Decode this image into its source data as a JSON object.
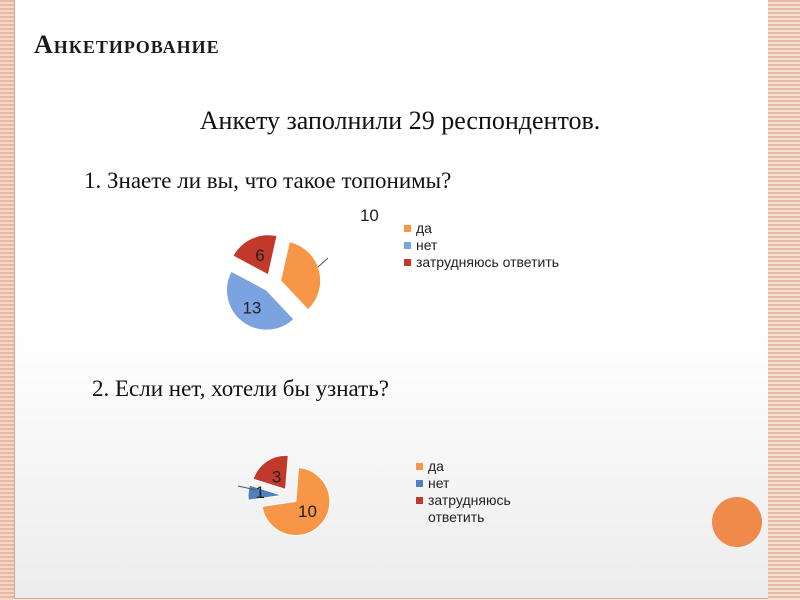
{
  "slide": {
    "title": "Анкетирование",
    "intro": "Анкету заполнили 29 респондентов."
  },
  "questions": [
    {
      "text": "1. Знаете ли вы, что такое топонимы?"
    },
    {
      "text": "2. Если нет, хотели бы узнать?"
    }
  ],
  "colors": {
    "accent_circle": "#f08a4b",
    "border": "#e7b8a3"
  },
  "chart_data": [
    {
      "type": "pie",
      "categories": [
        "да",
        "нет",
        "затрудняюсь ответить"
      ],
      "values": [
        10,
        13,
        6
      ],
      "colors": [
        "#f79646",
        "#7ba3e0",
        "#c0392b"
      ],
      "data_labels": [
        "10",
        "13",
        "6"
      ],
      "exploded": true,
      "legend_position": "right"
    },
    {
      "type": "pie",
      "categories": [
        "да",
        "нет",
        "затрудняюсь ответить"
      ],
      "values": [
        10,
        1,
        3
      ],
      "colors": [
        "#f79646",
        "#4f81bd",
        "#c0392b"
      ],
      "data_labels": [
        "10",
        "1",
        "3"
      ],
      "exploded": true,
      "legend_position": "right"
    }
  ]
}
